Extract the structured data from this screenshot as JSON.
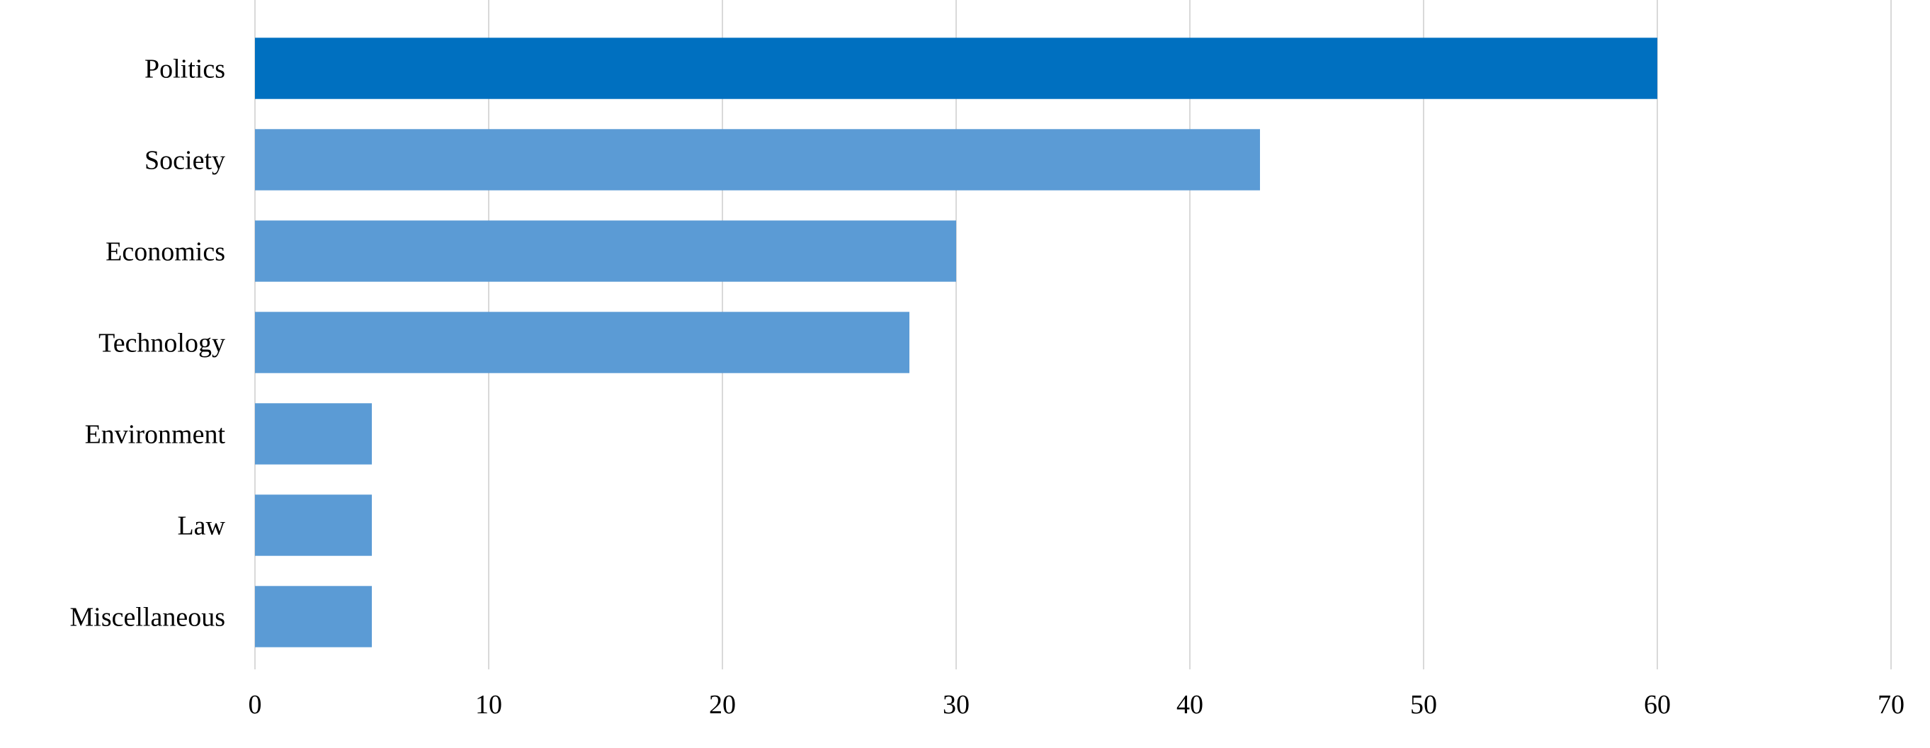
{
  "chart_data": {
    "type": "bar",
    "orientation": "horizontal",
    "categories": [
      "Politics",
      "Society",
      "Economics",
      "Technology",
      "Environment",
      "Law",
      "Miscellaneous"
    ],
    "values": [
      60,
      43,
      30,
      28,
      5,
      5,
      5
    ],
    "title": "",
    "xlabel": "",
    "ylabel": "",
    "xlim": [
      0,
      70
    ],
    "x_ticks": [
      "0",
      "10",
      "20",
      "30",
      "40",
      "50",
      "60",
      "70"
    ],
    "grid": "vertical",
    "legend": "none",
    "colors": {
      "highlight": "#0070C0",
      "default": "#5B9BD5",
      "grid": "#D9D9D9"
    },
    "highlighted_category": "Politics"
  }
}
